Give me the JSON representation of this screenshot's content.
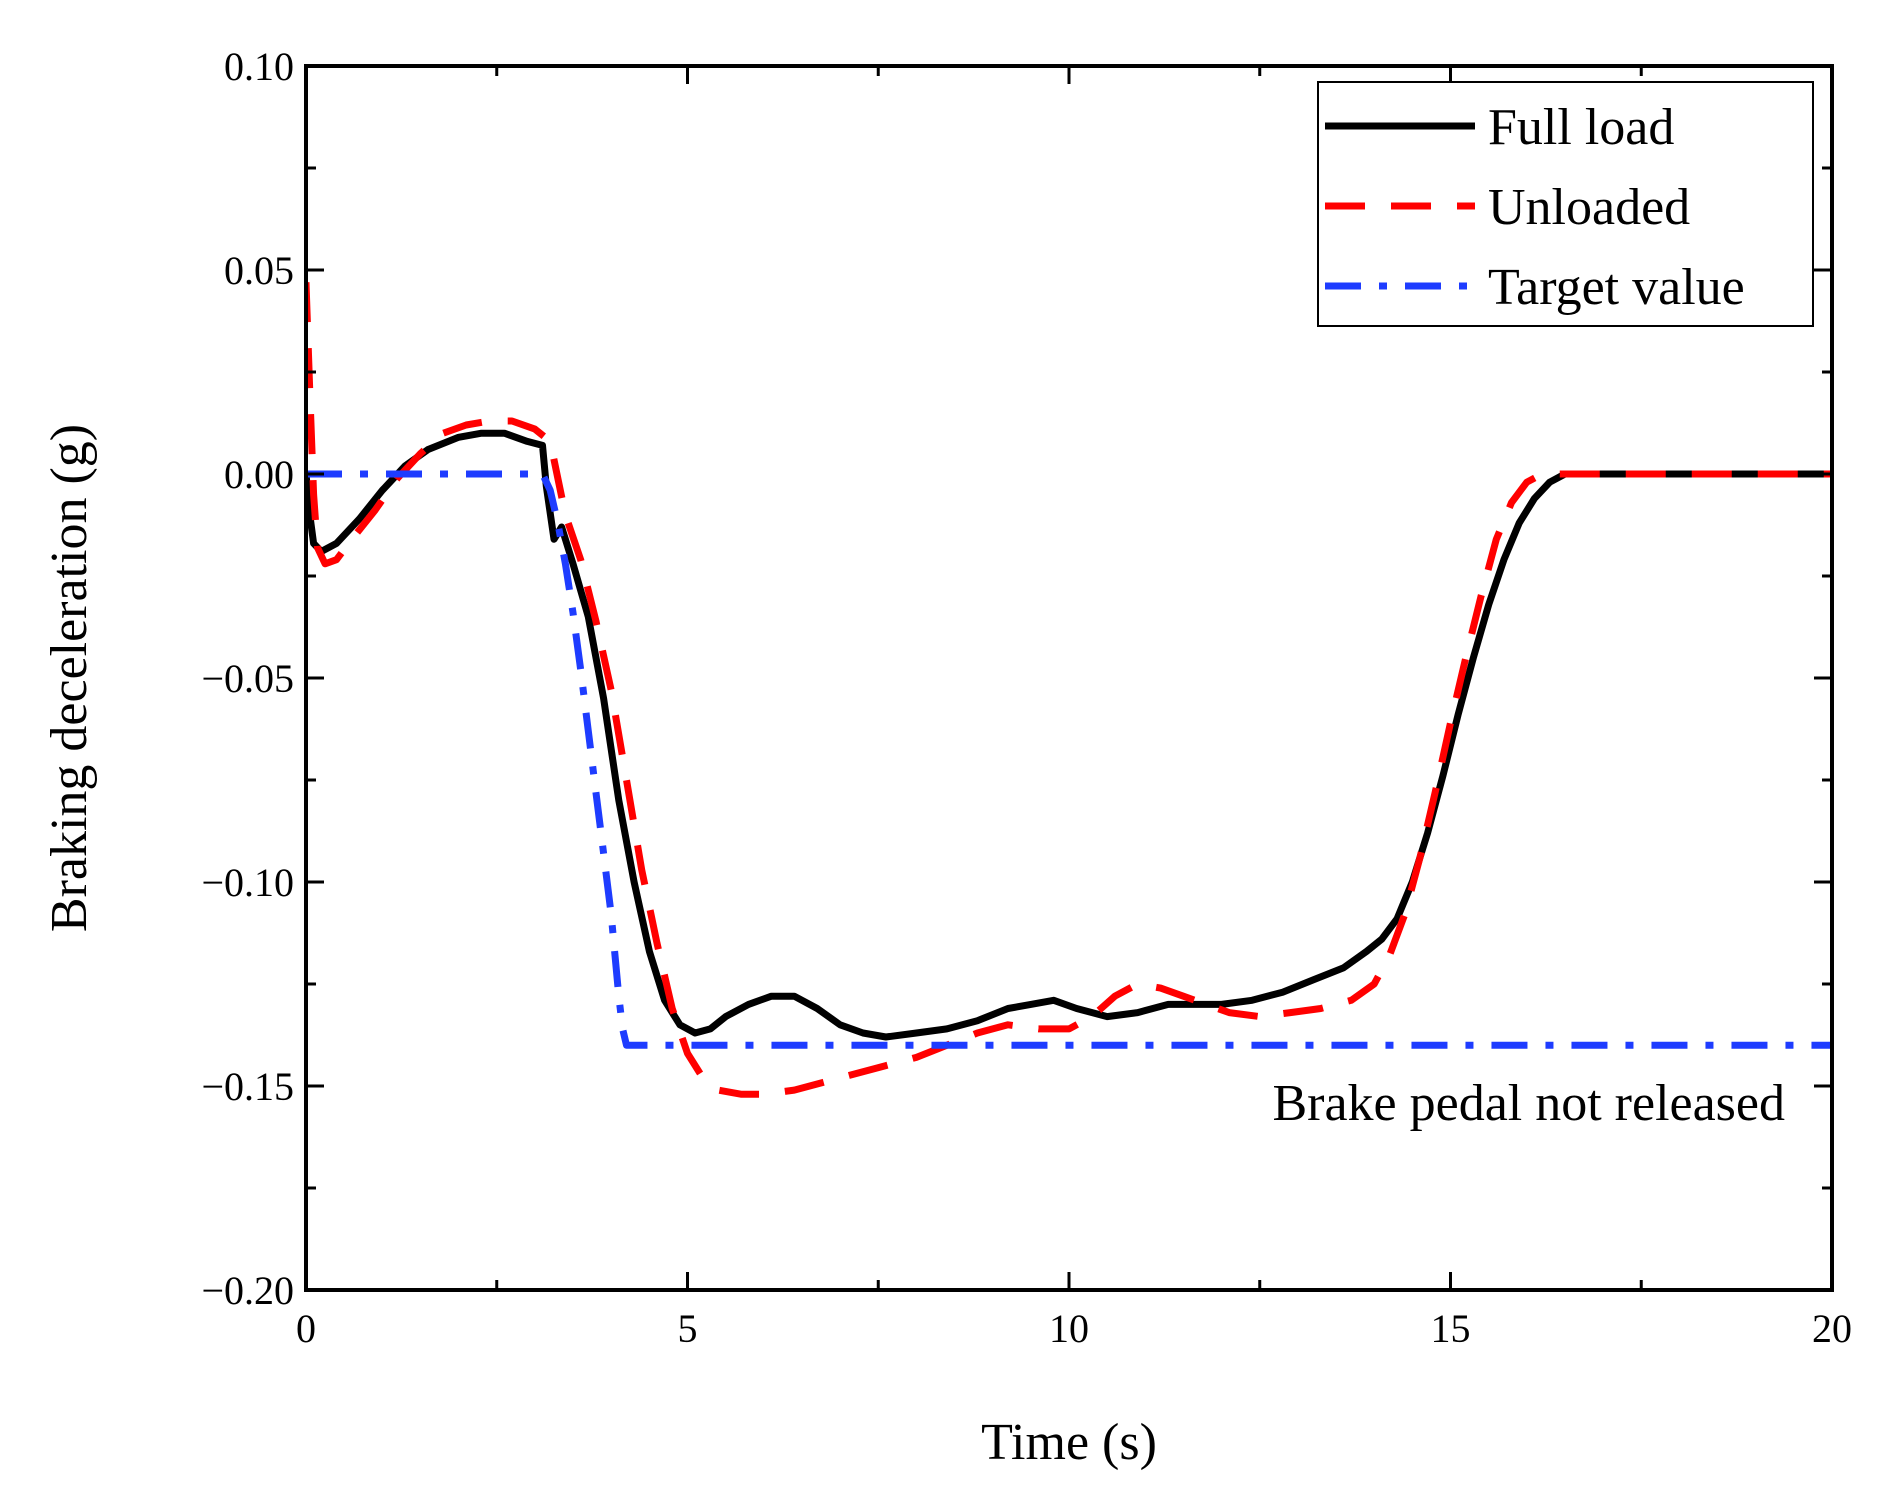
{
  "chart_data": {
    "type": "line",
    "title": "",
    "xlabel": "Time (s)",
    "ylabel": "Braking deceleration (g)",
    "xlim": [
      0,
      20
    ],
    "ylim": [
      -0.2,
      0.1
    ],
    "xticks": [
      0,
      5,
      10,
      15,
      20
    ],
    "xtick_labels": [
      "0",
      "5",
      "10",
      "15",
      "20"
    ],
    "yticks": [
      0.1,
      0.05,
      0.0,
      -0.05,
      -0.1,
      -0.15,
      -0.2
    ],
    "ytick_labels": [
      "0.10",
      "0.05",
      "0.00",
      "−0.05",
      "−0.10",
      "−0.15",
      "−0.20"
    ],
    "grid": false,
    "legend_position": "top-right",
    "annotation": "Brake pedal not released",
    "series": [
      {
        "name": "Full load",
        "color": "#000000",
        "style": "solid",
        "x": [
          0,
          0.05,
          0.1,
          0.2,
          0.4,
          0.7,
          1.0,
          1.3,
          1.6,
          2.0,
          2.3,
          2.6,
          2.9,
          3.1,
          3.15,
          3.25,
          3.35,
          3.5,
          3.7,
          3.9,
          4.1,
          4.3,
          4.5,
          4.7,
          4.9,
          5.1,
          5.3,
          5.5,
          5.8,
          6.1,
          6.4,
          6.7,
          7.0,
          7.3,
          7.6,
          8.0,
          8.4,
          8.8,
          9.2,
          9.5,
          9.8,
          10.1,
          10.5,
          10.9,
          11.3,
          11.7,
          12.0,
          12.4,
          12.8,
          13.2,
          13.6,
          13.9,
          14.1,
          14.3,
          14.5,
          14.7,
          14.9,
          15.1,
          15.3,
          15.5,
          15.7,
          15.9,
          16.1,
          16.3,
          16.5,
          16.7,
          16.9,
          17.2,
          17.6,
          18.0,
          19.0,
          20.0
        ],
        "y": [
          0.0,
          -0.01,
          -0.017,
          -0.019,
          -0.017,
          -0.011,
          -0.004,
          0.002,
          0.006,
          0.009,
          0.01,
          0.01,
          0.008,
          0.007,
          -0.003,
          -0.016,
          -0.013,
          -0.022,
          -0.035,
          -0.055,
          -0.08,
          -0.1,
          -0.117,
          -0.129,
          -0.135,
          -0.137,
          -0.136,
          -0.133,
          -0.13,
          -0.128,
          -0.128,
          -0.131,
          -0.135,
          -0.137,
          -0.138,
          -0.137,
          -0.136,
          -0.134,
          -0.131,
          -0.13,
          -0.129,
          -0.131,
          -0.133,
          -0.132,
          -0.13,
          -0.13,
          -0.13,
          -0.129,
          -0.127,
          -0.124,
          -0.121,
          -0.117,
          -0.114,
          -0.109,
          -0.1,
          -0.088,
          -0.074,
          -0.059,
          -0.045,
          -0.032,
          -0.021,
          -0.012,
          -0.006,
          -0.002,
          0.0,
          0.0,
          0.0,
          0.0,
          0.0,
          0.0,
          0.0,
          0.0
        ]
      },
      {
        "name": "Unloaded",
        "color": "#ff0000",
        "style": "dashed",
        "x": [
          0,
          0.05,
          0.1,
          0.15,
          0.25,
          0.4,
          0.6,
          0.9,
          1.2,
          1.5,
          1.8,
          2.1,
          2.4,
          2.7,
          3.0,
          3.2,
          3.4,
          3.6,
          3.8,
          4.0,
          4.2,
          4.4,
          4.6,
          4.8,
          5.0,
          5.2,
          5.4,
          5.7,
          6.0,
          6.4,
          6.8,
          7.2,
          7.6,
          8.0,
          8.4,
          8.8,
          9.2,
          9.6,
          10.0,
          10.3,
          10.6,
          10.9,
          11.2,
          11.5,
          11.8,
          12.1,
          12.5,
          12.9,
          13.3,
          13.7,
          14.0,
          14.2,
          14.4,
          14.6,
          14.8,
          15.0,
          15.2,
          15.4,
          15.6,
          15.8,
          16.0,
          16.2,
          16.4,
          16.6,
          17.0,
          18.0,
          19.0,
          20.0
        ],
        "y": [
          0.047,
          0.02,
          -0.005,
          -0.018,
          -0.022,
          -0.021,
          -0.016,
          -0.009,
          -0.001,
          0.005,
          0.01,
          0.012,
          0.013,
          0.013,
          0.011,
          0.008,
          -0.01,
          -0.021,
          -0.036,
          -0.053,
          -0.075,
          -0.097,
          -0.115,
          -0.131,
          -0.142,
          -0.148,
          -0.151,
          -0.152,
          -0.152,
          -0.151,
          -0.149,
          -0.147,
          -0.145,
          -0.143,
          -0.14,
          -0.137,
          -0.135,
          -0.136,
          -0.136,
          -0.133,
          -0.128,
          -0.125,
          -0.126,
          -0.128,
          -0.13,
          -0.132,
          -0.133,
          -0.132,
          -0.131,
          -0.129,
          -0.125,
          -0.118,
          -0.108,
          -0.094,
          -0.078,
          -0.061,
          -0.045,
          -0.03,
          -0.016,
          -0.007,
          -0.002,
          0.0,
          0.0,
          0.0,
          0.0,
          0.0,
          0.0,
          0.0
        ]
      },
      {
        "name": "Target value",
        "color": "#1e3cff",
        "style": "dash-dot",
        "x": [
          0,
          3.1,
          3.2,
          3.3,
          3.4,
          3.5,
          3.6,
          3.7,
          3.8,
          3.9,
          4.0,
          4.05,
          4.1,
          4.15,
          4.2,
          20.0
        ],
        "y": [
          0.0,
          0.0,
          -0.004,
          -0.012,
          -0.022,
          -0.034,
          -0.048,
          -0.063,
          -0.078,
          -0.093,
          -0.108,
          -0.118,
          -0.128,
          -0.136,
          -0.14,
          -0.14
        ]
      }
    ]
  }
}
